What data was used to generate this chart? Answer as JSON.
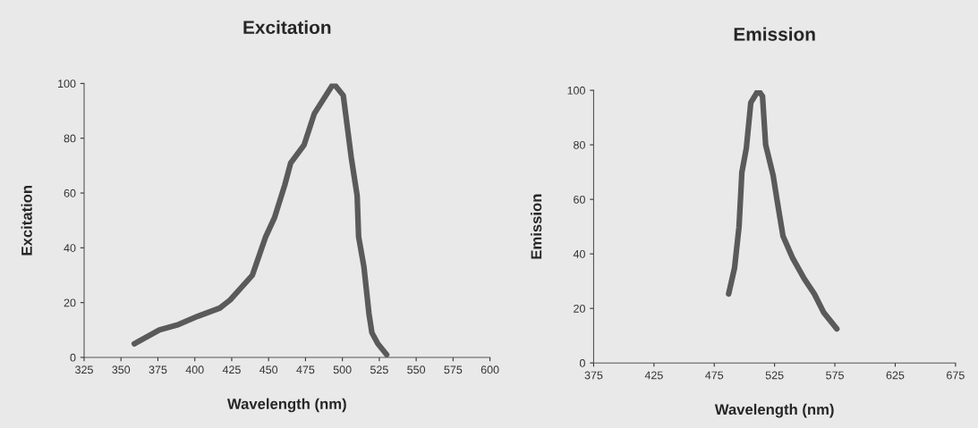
{
  "chart_data": [
    {
      "type": "line",
      "title": "Excitation",
      "xlabel": "Wavelength (nm)",
      "ylabel": "Excitation",
      "x": [
        359,
        376,
        389,
        402,
        417,
        424,
        439,
        448,
        454,
        461,
        465,
        474,
        481,
        494,
        500.6,
        506,
        510,
        511,
        514.6,
        518,
        520,
        524,
        530
      ],
      "series": [
        {
          "color": "#5a5a5a",
          "values": [
            5,
            10,
            12,
            15,
            18,
            21,
            30,
            44,
            51,
            63,
            71,
            77.5,
            89,
            100,
            95.6,
            73,
            59,
            44,
            33,
            16,
            9,
            5,
            1
          ]
        }
      ],
      "xlim": [
        325,
        600
      ],
      "xticks": [
        325,
        350,
        375,
        400,
        425,
        450,
        475,
        500,
        525,
        550,
        575,
        600
      ],
      "ylim": [
        0,
        100
      ],
      "yticks": [
        0,
        20,
        40,
        60,
        80,
        100
      ],
      "grid": false
    },
    {
      "type": "line",
      "title": "Emission",
      "xlabel": "Wavelength (nm)",
      "ylabel": "Emission",
      "x": [
        486.9,
        491.8,
        495.5,
        497.9,
        501.6,
        505.3,
        511.5,
        515,
        517.6,
        523.8,
        527.4,
        532,
        539.7,
        549.6,
        558,
        565.6,
        576.6
      ],
      "series": [
        {
          "color": "#5a5a5a",
          "values": [
            25.3,
            34.8,
            49.8,
            69.9,
            78.8,
            95.5,
            100,
            97.8,
            80,
            68.8,
            58.8,
            46.5,
            38.7,
            30.9,
            25.3,
            18.6,
            12.5
          ]
        }
      ],
      "xlim": [
        375,
        675
      ],
      "xticks": [
        375,
        425,
        475,
        525,
        575,
        625,
        675
      ],
      "ylim": [
        0,
        100
      ],
      "yticks": [
        0,
        20,
        40,
        60,
        80,
        100
      ],
      "grid": false
    }
  ]
}
